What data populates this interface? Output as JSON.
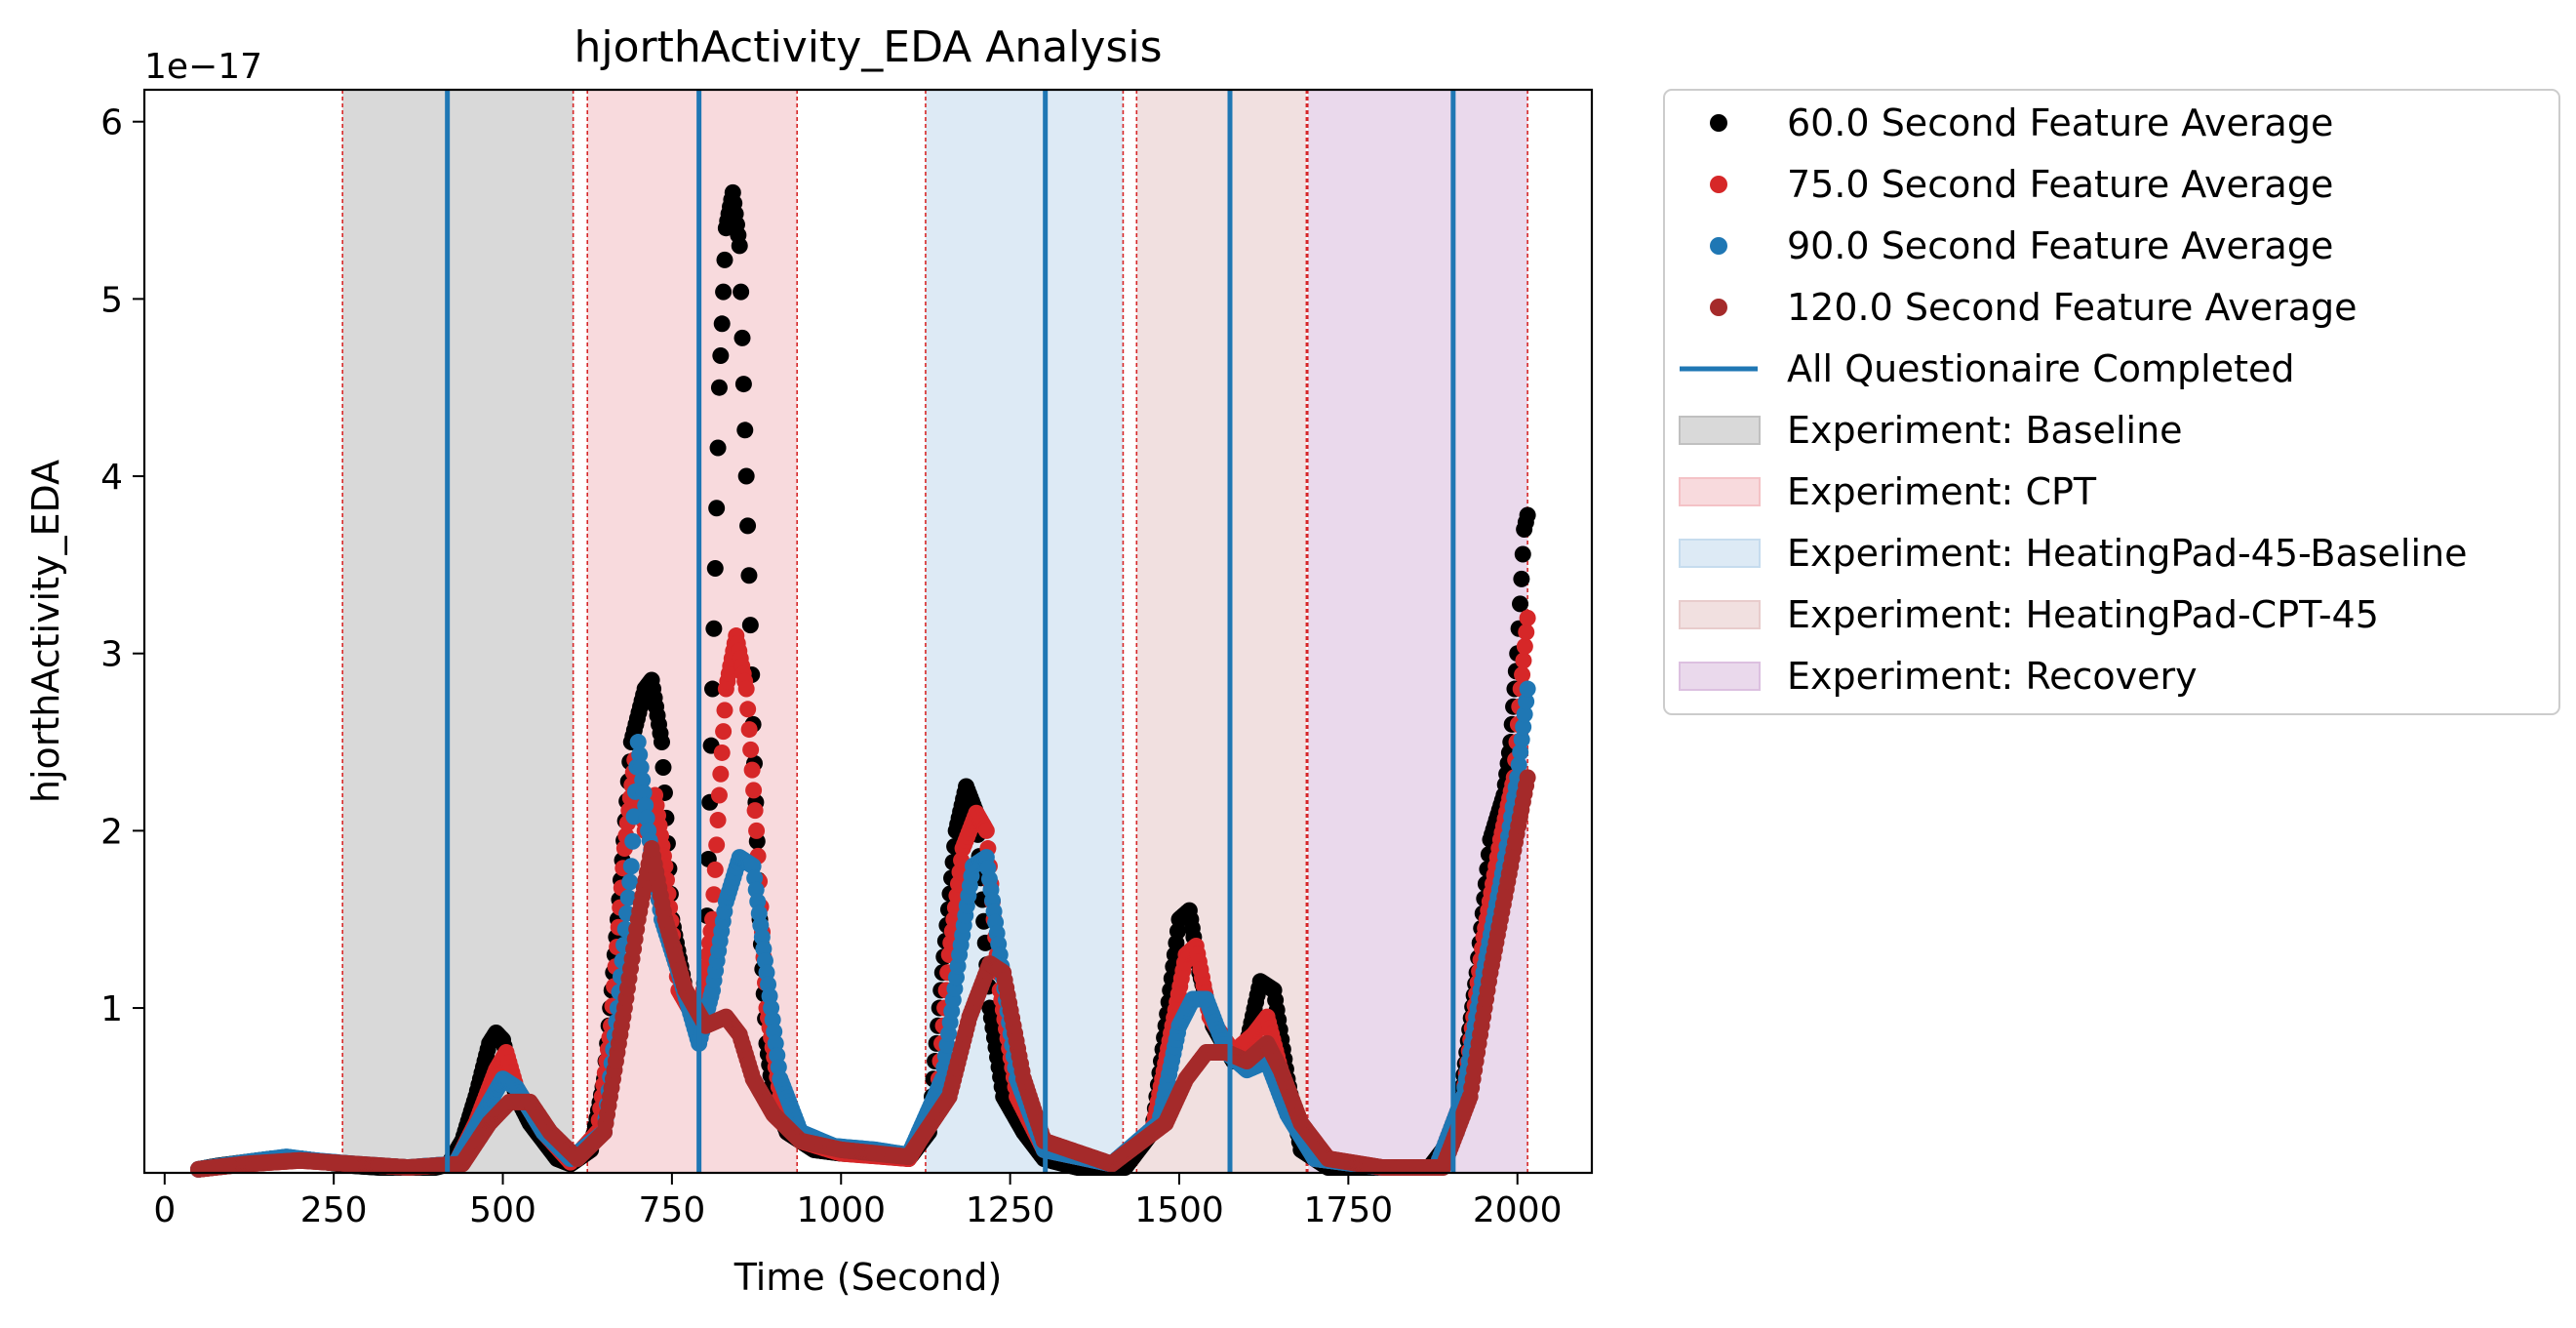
{
  "chart_data": {
    "type": "scatter",
    "title": "hjorthActivity_EDA Analysis",
    "xlabel": "Time (Second)",
    "ylabel": "hjorthActivity_EDA",
    "y_offset_label": "1e−17",
    "xlim": [
      -30,
      2110
    ],
    "ylim": [
      0.07,
      6.18
    ],
    "x_ticks": [
      0,
      250,
      500,
      750,
      1000,
      1250,
      1500,
      1750,
      2000
    ],
    "y_ticks": [
      1,
      2,
      3,
      4,
      5,
      6
    ],
    "grid": false,
    "legend_position": "outside upper right",
    "series": [
      {
        "name": "60.0 Second Feature Average",
        "color": "#000000",
        "marker": "dot",
        "points": [
          [
            50,
            0.09
          ],
          [
            80,
            0.11
          ],
          [
            120,
            0.13
          ],
          [
            160,
            0.15
          ],
          [
            200,
            0.15
          ],
          [
            240,
            0.13
          ],
          [
            280,
            0.11
          ],
          [
            320,
            0.1
          ],
          [
            360,
            0.1
          ],
          [
            400,
            0.1
          ],
          [
            420,
            0.12
          ],
          [
            440,
            0.25
          ],
          [
            460,
            0.5
          ],
          [
            480,
            0.8
          ],
          [
            490,
            0.86
          ],
          [
            500,
            0.82
          ],
          [
            520,
            0.5
          ],
          [
            540,
            0.35
          ],
          [
            560,
            0.25
          ],
          [
            580,
            0.15
          ],
          [
            600,
            0.12
          ],
          [
            630,
            0.2
          ],
          [
            650,
            0.6
          ],
          [
            670,
            1.5
          ],
          [
            690,
            2.5
          ],
          [
            710,
            2.8
          ],
          [
            720,
            2.85
          ],
          [
            735,
            2.5
          ],
          [
            750,
            1.5
          ],
          [
            770,
            1.1
          ],
          [
            790,
            0.9
          ],
          [
            800,
            1.2
          ],
          [
            810,
            2.8
          ],
          [
            820,
            4.5
          ],
          [
            830,
            5.4
          ],
          [
            840,
            5.6
          ],
          [
            850,
            5.3
          ],
          [
            860,
            4.0
          ],
          [
            870,
            2.6
          ],
          [
            880,
            1.5
          ],
          [
            890,
            0.8
          ],
          [
            900,
            0.5
          ],
          [
            920,
            0.3
          ],
          [
            960,
            0.2
          ],
          [
            1000,
            0.18
          ],
          [
            1050,
            0.17
          ],
          [
            1100,
            0.15
          ],
          [
            1130,
            0.3
          ],
          [
            1150,
            1.2
          ],
          [
            1170,
            2.0
          ],
          [
            1185,
            2.25
          ],
          [
            1200,
            2.1
          ],
          [
            1220,
            1.0
          ],
          [
            1240,
            0.5
          ],
          [
            1270,
            0.3
          ],
          [
            1300,
            0.15
          ],
          [
            1350,
            0.1
          ],
          [
            1420,
            0.1
          ],
          [
            1460,
            0.3
          ],
          [
            1480,
            0.9
          ],
          [
            1500,
            1.5
          ],
          [
            1515,
            1.55
          ],
          [
            1530,
            1.2
          ],
          [
            1550,
            0.9
          ],
          [
            1580,
            0.7
          ],
          [
            1600,
            0.8
          ],
          [
            1620,
            1.15
          ],
          [
            1640,
            1.1
          ],
          [
            1660,
            0.6
          ],
          [
            1680,
            0.2
          ],
          [
            1720,
            0.1
          ],
          [
            1800,
            0.1
          ],
          [
            1870,
            0.1
          ],
          [
            1910,
            0.3
          ],
          [
            1940,
            1.2
          ],
          [
            1960,
            1.95
          ],
          [
            1980,
            2.2
          ],
          [
            1990,
            2.5
          ],
          [
            2000,
            3.0
          ],
          [
            2010,
            3.7
          ],
          [
            2015,
            3.78
          ]
        ]
      },
      {
        "name": "75.0 Second Feature Average",
        "color": "#d62728",
        "marker": "dot",
        "points": [
          [
            50,
            0.09
          ],
          [
            120,
            0.12
          ],
          [
            200,
            0.14
          ],
          [
            280,
            0.12
          ],
          [
            360,
            0.1
          ],
          [
            430,
            0.12
          ],
          [
            460,
            0.35
          ],
          [
            490,
            0.65
          ],
          [
            505,
            0.75
          ],
          [
            520,
            0.55
          ],
          [
            560,
            0.3
          ],
          [
            600,
            0.13
          ],
          [
            640,
            0.3
          ],
          [
            660,
            0.9
          ],
          [
            680,
            1.9
          ],
          [
            695,
            2.4
          ],
          [
            710,
            2.0
          ],
          [
            725,
            2.2
          ],
          [
            740,
            1.8
          ],
          [
            760,
            1.1
          ],
          [
            790,
            0.9
          ],
          [
            810,
            1.5
          ],
          [
            820,
            2.2
          ],
          [
            830,
            2.8
          ],
          [
            845,
            3.1
          ],
          [
            860,
            2.8
          ],
          [
            875,
            2.0
          ],
          [
            890,
            1.0
          ],
          [
            910,
            0.5
          ],
          [
            940,
            0.25
          ],
          [
            1000,
            0.18
          ],
          [
            1100,
            0.15
          ],
          [
            1140,
            0.4
          ],
          [
            1160,
            1.3
          ],
          [
            1180,
            1.9
          ],
          [
            1200,
            2.1
          ],
          [
            1215,
            2.0
          ],
          [
            1235,
            1.1
          ],
          [
            1260,
            0.5
          ],
          [
            1300,
            0.2
          ],
          [
            1400,
            0.12
          ],
          [
            1460,
            0.3
          ],
          [
            1490,
            0.9
          ],
          [
            1510,
            1.3
          ],
          [
            1525,
            1.35
          ],
          [
            1545,
            0.95
          ],
          [
            1580,
            0.75
          ],
          [
            1610,
            0.85
          ],
          [
            1630,
            0.95
          ],
          [
            1660,
            0.5
          ],
          [
            1700,
            0.15
          ],
          [
            1800,
            0.1
          ],
          [
            1880,
            0.1
          ],
          [
            1920,
            0.5
          ],
          [
            1950,
            1.4
          ],
          [
            1975,
            1.95
          ],
          [
            1995,
            2.3
          ],
          [
            2005,
            2.8
          ],
          [
            2015,
            3.2
          ]
        ]
      },
      {
        "name": "90.0 Second Feature Average",
        "color": "#1f77b4",
        "marker": "dot",
        "points": [
          [
            50,
            0.09
          ],
          [
            120,
            0.13
          ],
          [
            180,
            0.16
          ],
          [
            220,
            0.14
          ],
          [
            280,
            0.12
          ],
          [
            360,
            0.1
          ],
          [
            430,
            0.12
          ],
          [
            470,
            0.4
          ],
          [
            500,
            0.6
          ],
          [
            520,
            0.55
          ],
          [
            560,
            0.3
          ],
          [
            600,
            0.15
          ],
          [
            650,
            0.3
          ],
          [
            670,
            1.0
          ],
          [
            690,
            1.8
          ],
          [
            700,
            2.5
          ],
          [
            715,
            2.0
          ],
          [
            735,
            1.5
          ],
          [
            760,
            1.2
          ],
          [
            790,
            0.8
          ],
          [
            810,
            1.1
          ],
          [
            830,
            1.6
          ],
          [
            850,
            1.85
          ],
          [
            870,
            1.8
          ],
          [
            890,
            1.2
          ],
          [
            910,
            0.6
          ],
          [
            940,
            0.3
          ],
          [
            990,
            0.22
          ],
          [
            1050,
            0.2
          ],
          [
            1100,
            0.17
          ],
          [
            1150,
            0.6
          ],
          [
            1175,
            1.3
          ],
          [
            1195,
            1.8
          ],
          [
            1215,
            1.85
          ],
          [
            1235,
            1.3
          ],
          [
            1260,
            0.6
          ],
          [
            1300,
            0.2
          ],
          [
            1400,
            0.12
          ],
          [
            1470,
            0.35
          ],
          [
            1500,
            0.9
          ],
          [
            1520,
            1.05
          ],
          [
            1540,
            1.05
          ],
          [
            1570,
            0.75
          ],
          [
            1600,
            0.65
          ],
          [
            1630,
            0.7
          ],
          [
            1660,
            0.4
          ],
          [
            1700,
            0.15
          ],
          [
            1800,
            0.1
          ],
          [
            1880,
            0.1
          ],
          [
            1920,
            0.5
          ],
          [
            1950,
            1.2
          ],
          [
            1980,
            1.8
          ],
          [
            2000,
            2.3
          ],
          [
            2015,
            2.8
          ]
        ]
      },
      {
        "name": "120.0 Second Feature Average",
        "color": "#a52a2a",
        "marker": "dot",
        "points": [
          [
            50,
            0.09
          ],
          [
            120,
            0.12
          ],
          [
            200,
            0.14
          ],
          [
            280,
            0.12
          ],
          [
            360,
            0.1
          ],
          [
            440,
            0.12
          ],
          [
            480,
            0.35
          ],
          [
            510,
            0.47
          ],
          [
            540,
            0.47
          ],
          [
            570,
            0.3
          ],
          [
            610,
            0.15
          ],
          [
            650,
            0.3
          ],
          [
            680,
            1.0
          ],
          [
            700,
            1.5
          ],
          [
            720,
            1.9
          ],
          [
            740,
            1.5
          ],
          [
            770,
            1.1
          ],
          [
            800,
            0.9
          ],
          [
            830,
            0.95
          ],
          [
            850,
            0.85
          ],
          [
            870,
            0.6
          ],
          [
            900,
            0.4
          ],
          [
            940,
            0.25
          ],
          [
            1000,
            0.2
          ],
          [
            1100,
            0.16
          ],
          [
            1160,
            0.5
          ],
          [
            1190,
            0.95
          ],
          [
            1220,
            1.25
          ],
          [
            1240,
            1.2
          ],
          [
            1270,
            0.6
          ],
          [
            1300,
            0.25
          ],
          [
            1400,
            0.12
          ],
          [
            1480,
            0.35
          ],
          [
            1510,
            0.6
          ],
          [
            1540,
            0.75
          ],
          [
            1570,
            0.75
          ],
          [
            1600,
            0.7
          ],
          [
            1630,
            0.8
          ],
          [
            1650,
            0.65
          ],
          [
            1680,
            0.35
          ],
          [
            1720,
            0.15
          ],
          [
            1800,
            0.1
          ],
          [
            1890,
            0.1
          ],
          [
            1930,
            0.5
          ],
          [
            1960,
            1.2
          ],
          [
            1990,
            1.8
          ],
          [
            2015,
            2.3
          ]
        ]
      }
    ],
    "vertical_lines": {
      "name": "All Questionaire Completed",
      "color": "#1f77b4",
      "x": [
        418,
        790,
        1302,
        1575,
        1905
      ]
    },
    "shaded_regions": [
      {
        "name": "Experiment: Baseline",
        "color": "#c0c0c0",
        "start": 263,
        "end": 604
      },
      {
        "name": "Experiment: CPT",
        "color": "#f4c2c6",
        "start": 625,
        "end": 935
      },
      {
        "name": "Experiment: HeatingPad-45-Baseline",
        "color": "#c6dcee",
        "start": 1125,
        "end": 1417
      },
      {
        "name": "Experiment: HeatingPad-CPT-45",
        "color": "#e8cccc",
        "start": 1437,
        "end": 1688
      },
      {
        "name": "Experiment: Recovery",
        "color": "#dcc0e0",
        "start": 1690,
        "end": 2015
      }
    ]
  }
}
